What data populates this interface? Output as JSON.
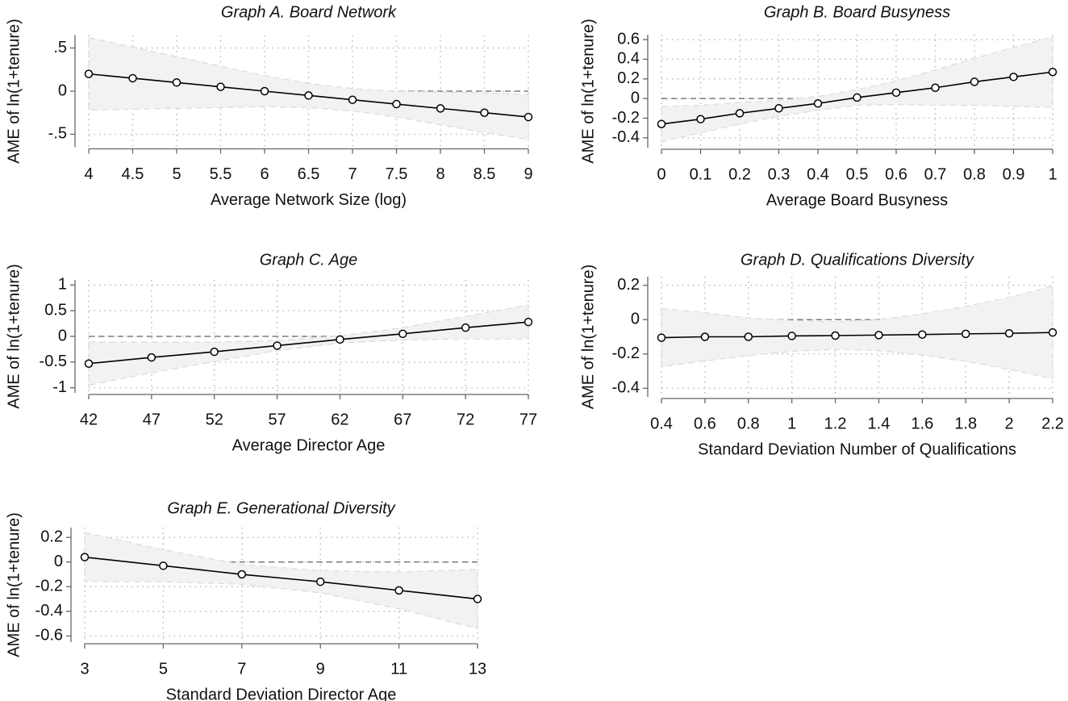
{
  "chart_data": [
    {
      "type": "line",
      "title": "Graph A. Board Network",
      "x_label": "Average Network Size (log)",
      "y_label": "AME of ln(1+tenure)",
      "x": [
        4,
        4.5,
        5,
        5.5,
        6,
        6.5,
        7,
        7.5,
        8,
        8.5,
        9
      ],
      "values": [
        0.2,
        0.15,
        0.1,
        0.05,
        0.0,
        -0.05,
        -0.1,
        -0.15,
        -0.2,
        -0.25,
        -0.3
      ],
      "upper": [
        0.62,
        0.51,
        0.4,
        0.29,
        0.18,
        0.09,
        0.03,
        0.0,
        -0.01,
        -0.02,
        -0.04
      ],
      "lower": [
        -0.22,
        -0.21,
        -0.2,
        -0.19,
        -0.18,
        -0.19,
        -0.23,
        -0.3,
        -0.39,
        -0.48,
        -0.56
      ],
      "xlim": [
        4,
        9
      ],
      "xticks": [
        4,
        4.5,
        5,
        5.5,
        6,
        6.5,
        7,
        7.5,
        8,
        8.5,
        9
      ],
      "ylim": [
        -0.65,
        0.65
      ],
      "yticks": [
        {
          "value": -0.5,
          "label": "-.5"
        },
        0,
        {
          "value": 0.5,
          "label": ".5"
        }
      ],
      "reference_line": 0,
      "grid": true,
      "color": "#000000",
      "band_color": "#f2f2f2"
    },
    {
      "type": "line",
      "title": "Graph B. Board Busyness",
      "x_label": "Average Board Busyness",
      "y_label": "AME of ln(1+tenure)",
      "x": [
        0,
        0.1,
        0.2,
        0.3,
        0.4,
        0.5,
        0.6,
        0.7,
        0.8,
        0.9,
        1
      ],
      "values": [
        -0.26,
        -0.21,
        -0.15,
        -0.1,
        -0.05,
        0.01,
        0.06,
        0.11,
        0.17,
        0.22,
        0.27
      ],
      "upper": [
        -0.08,
        -0.07,
        -0.04,
        -0.02,
        0.02,
        0.09,
        0.18,
        0.29,
        0.41,
        0.52,
        0.63
      ],
      "lower": [
        -0.44,
        -0.35,
        -0.26,
        -0.18,
        -0.12,
        -0.07,
        -0.06,
        -0.07,
        -0.07,
        -0.08,
        -0.09
      ],
      "xlim": [
        0,
        1
      ],
      "xticks": [
        0,
        0.1,
        0.2,
        0.3,
        0.4,
        0.5,
        0.6,
        0.7,
        0.8,
        0.9,
        1
      ],
      "ylim": [
        -0.5,
        0.65
      ],
      "yticks": [
        -0.4,
        -0.2,
        0,
        0.2,
        0.4,
        0.6
      ],
      "reference_line": 0,
      "grid": true,
      "color": "#000000",
      "band_color": "#f2f2f2"
    },
    {
      "type": "line",
      "title": "Graph C. Age",
      "x_label": "Average Director Age",
      "y_label": "AME of ln(1+tenure)",
      "x": [
        42,
        47,
        52,
        57,
        62,
        67,
        72,
        77
      ],
      "values": [
        -0.53,
        -0.41,
        -0.3,
        -0.18,
        -0.06,
        0.05,
        0.17,
        0.28
      ],
      "upper": [
        -0.11,
        -0.11,
        -0.11,
        -0.08,
        0.01,
        0.17,
        0.39,
        0.61
      ],
      "lower": [
        -0.95,
        -0.71,
        -0.49,
        -0.28,
        -0.13,
        -0.07,
        -0.05,
        -0.05
      ],
      "xlim": [
        42,
        77
      ],
      "xticks": [
        42,
        47,
        52,
        57,
        62,
        67,
        72,
        77
      ],
      "ylim": [
        -1.1,
        1.1
      ],
      "yticks": [
        -1,
        -0.5,
        0,
        0.5,
        1
      ],
      "reference_line": 0,
      "grid": true,
      "color": "#000000",
      "band_color": "#f2f2f2"
    },
    {
      "type": "line",
      "title": "Graph D. Qualifications Diversity",
      "x_label": "Standard Deviation Number of Qualifications",
      "y_label": "AME of ln(1+tenure)",
      "x": [
        0.4,
        0.6,
        0.8,
        1,
        1.2,
        1.4,
        1.6,
        1.8,
        2,
        2.2
      ],
      "values": [
        -0.105,
        -0.1,
        -0.1,
        -0.095,
        -0.093,
        -0.09,
        -0.087,
        -0.083,
        -0.08,
        -0.075
      ],
      "upper": [
        0.065,
        0.04,
        0.01,
        -0.005,
        -0.013,
        0.0,
        0.033,
        0.077,
        0.13,
        0.195
      ],
      "lower": [
        -0.275,
        -0.24,
        -0.21,
        -0.185,
        -0.173,
        -0.18,
        -0.207,
        -0.243,
        -0.29,
        -0.345
      ],
      "xlim": [
        0.4,
        2.2
      ],
      "xticks": [
        0.4,
        0.6,
        0.8,
        1,
        1.2,
        1.4,
        1.6,
        1.8,
        2,
        2.2
      ],
      "ylim": [
        -0.45,
        0.25
      ],
      "yticks": [
        -0.4,
        -0.2,
        0,
        0.2
      ],
      "reference_line": 0,
      "grid": true,
      "color": "#000000",
      "band_color": "#f2f2f2"
    },
    {
      "type": "line",
      "title": "Graph E. Generational Diversity",
      "x_label": "Standard Deviation Director Age",
      "y_label": "AME of ln(1+tenure)",
      "x": [
        3,
        5,
        7,
        9,
        11,
        13
      ],
      "values": [
        0.04,
        -0.03,
        -0.1,
        -0.16,
        -0.23,
        -0.3
      ],
      "upper": [
        0.24,
        0.1,
        -0.02,
        -0.07,
        -0.08,
        -0.06
      ],
      "lower": [
        -0.16,
        -0.16,
        -0.18,
        -0.25,
        -0.38,
        -0.54
      ],
      "xlim": [
        3,
        13
      ],
      "xticks": [
        3,
        5,
        7,
        9,
        11,
        13
      ],
      "ylim": [
        -0.65,
        0.28
      ],
      "yticks": [
        -0.6,
        -0.4,
        -0.2,
        0,
        0.2
      ],
      "reference_line": 0,
      "grid": true,
      "color": "#000000",
      "band_color": "#f2f2f2"
    }
  ]
}
